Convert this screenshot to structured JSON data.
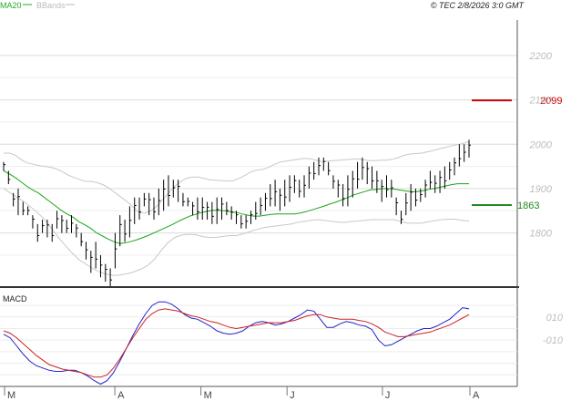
{
  "header": {
    "watermark": "© TEC 2/8/2026 3:0 GMT"
  },
  "legend": [
    {
      "label": "MA20",
      "color": "#22aa22"
    },
    {
      "label": "BBands",
      "color": "#bbbbbb"
    }
  ],
  "colors": {
    "price": "#000000",
    "ma20": "#1aa51a",
    "bbands": "#c8c8c8",
    "macd": "#2222cc",
    "signal": "#cc2222",
    "resistance": "#cc0000",
    "support": "#228822"
  },
  "macd_panel": {
    "label": "MACD"
  },
  "chart_data": [
    {
      "type": "ohlc",
      "title": "",
      "ylim": [
        1680,
        2280
      ],
      "y_ticks": [
        1800,
        1900,
        2000,
        2100,
        2200
      ],
      "x_month_labels": [
        "M",
        "A",
        "M",
        "J",
        "J",
        "A"
      ],
      "grid": true,
      "legend_placement": "top-left",
      "levels": [
        {
          "name": "resistance",
          "value": 2099,
          "label": "2099"
        },
        {
          "name": "support",
          "value": 1863,
          "label": "1863"
        }
      ],
      "price_bars": [
        [
          1940,
          1960
        ],
        [
          1910,
          1940
        ],
        [
          1860,
          1890
        ],
        [
          1840,
          1900
        ],
        [
          1840,
          1870
        ],
        [
          1840,
          1860
        ],
        [
          1810,
          1840
        ],
        [
          1780,
          1820
        ],
        [
          1800,
          1830
        ],
        [
          1790,
          1830
        ],
        [
          1780,
          1820
        ],
        [
          1810,
          1850
        ],
        [
          1800,
          1840
        ],
        [
          1800,
          1830
        ],
        [
          1800,
          1840
        ],
        [
          1790,
          1820
        ],
        [
          1770,
          1800
        ],
        [
          1740,
          1780
        ],
        [
          1710,
          1760
        ],
        [
          1720,
          1780
        ],
        [
          1700,
          1750
        ],
        [
          1690,
          1730
        ],
        [
          1680,
          1720
        ],
        [
          1720,
          1800
        ],
        [
          1770,
          1840
        ],
        [
          1780,
          1830
        ],
        [
          1790,
          1860
        ],
        [
          1820,
          1880
        ],
        [
          1830,
          1880
        ],
        [
          1860,
          1890
        ],
        [
          1840,
          1890
        ],
        [
          1830,
          1880
        ],
        [
          1840,
          1900
        ],
        [
          1850,
          1920
        ],
        [
          1860,
          1930
        ],
        [
          1880,
          1920
        ],
        [
          1870,
          1920
        ],
        [
          1860,
          1890
        ],
        [
          1860,
          1880
        ],
        [
          1840,
          1870
        ],
        [
          1830,
          1880
        ],
        [
          1830,
          1880
        ],
        [
          1830,
          1870
        ],
        [
          1820,
          1870
        ],
        [
          1820,
          1880
        ],
        [
          1830,
          1880
        ],
        [
          1840,
          1870
        ],
        [
          1830,
          1860
        ],
        [
          1820,
          1850
        ],
        [
          1810,
          1840
        ],
        [
          1810,
          1840
        ],
        [
          1820,
          1850
        ],
        [
          1830,
          1870
        ],
        [
          1840,
          1880
        ],
        [
          1850,
          1890
        ],
        [
          1860,
          1910
        ],
        [
          1860,
          1920
        ],
        [
          1850,
          1900
        ],
        [
          1860,
          1920
        ],
        [
          1870,
          1930
        ],
        [
          1890,
          1930
        ],
        [
          1880,
          1920
        ],
        [
          1880,
          1930
        ],
        [
          1900,
          1950
        ],
        [
          1920,
          1960
        ],
        [
          1930,
          1970
        ],
        [
          1940,
          1970
        ],
        [
          1930,
          1960
        ],
        [
          1900,
          1930
        ],
        [
          1880,
          1920
        ],
        [
          1860,
          1910
        ],
        [
          1860,
          1930
        ],
        [
          1880,
          1940
        ],
        [
          1900,
          1960
        ],
        [
          1920,
          1970
        ],
        [
          1910,
          1960
        ],
        [
          1900,
          1950
        ],
        [
          1890,
          1940
        ],
        [
          1870,
          1920
        ],
        [
          1880,
          1930
        ],
        [
          1880,
          1920
        ],
        [
          1840,
          1880
        ],
        [
          1820,
          1850
        ],
        [
          1840,
          1890
        ],
        [
          1850,
          1910
        ],
        [
          1860,
          1900
        ],
        [
          1870,
          1900
        ],
        [
          1880,
          1920
        ],
        [
          1900,
          1940
        ],
        [
          1890,
          1930
        ],
        [
          1890,
          1940
        ],
        [
          1900,
          1950
        ],
        [
          1920,
          1960
        ],
        [
          1930,
          1970
        ],
        [
          1950,
          2000
        ],
        [
          1960,
          2000
        ],
        [
          1970,
          2010
        ]
      ],
      "ma20": [
        1940,
        1933,
        1925,
        1915,
        1905,
        1897,
        1890,
        1880,
        1870,
        1860,
        1850,
        1842,
        1835,
        1825,
        1818,
        1810,
        1800,
        1793,
        1786,
        1780,
        1776,
        1778,
        1781,
        1785,
        1790,
        1795,
        1801,
        1807,
        1813,
        1819,
        1826,
        1832,
        1838,
        1842,
        1846,
        1849,
        1851,
        1851,
        1850,
        1848,
        1846,
        1843,
        1840,
        1838,
        1838,
        1840,
        1842,
        1843,
        1843,
        1843,
        1843,
        1845,
        1848,
        1852,
        1856,
        1860,
        1865,
        1869,
        1874,
        1879,
        1885,
        1889,
        1893,
        1897,
        1898,
        1900,
        1900,
        1899,
        1897,
        1895,
        1893,
        1893,
        1895,
        1898,
        1900,
        1903,
        1906,
        1909,
        1911,
        1911,
        1911
      ],
      "bb_upper": [
        1980,
        1980,
        1975,
        1965,
        1958,
        1955,
        1952,
        1950,
        1948,
        1944,
        1938,
        1930,
        1925,
        1920,
        1916,
        1916,
        1913,
        1908,
        1900,
        1890,
        1880,
        1870,
        1858,
        1845,
        1845,
        1850,
        1860,
        1875,
        1890,
        1905,
        1915,
        1923,
        1926,
        1926,
        1923,
        1920,
        1919,
        1918,
        1917,
        1918,
        1923,
        1930,
        1938,
        1942,
        1943,
        1948,
        1955,
        1960,
        1962,
        1964,
        1966,
        1968,
        1967,
        1964,
        1961,
        1962,
        1963,
        1964,
        1965,
        1966,
        1967,
        1965,
        1963,
        1963,
        1964,
        1964,
        1966,
        1970,
        1975,
        1978,
        1979,
        1980,
        1983,
        1986,
        1990,
        1993,
        1996,
        1999,
        2002,
        2006
      ],
      "bb_lower": [
        1900,
        1890,
        1880,
        1870,
        1858,
        1845,
        1830,
        1810,
        1790,
        1772,
        1755,
        1740,
        1730,
        1720,
        1712,
        1707,
        1704,
        1705,
        1708,
        1712,
        1718,
        1726,
        1740,
        1760,
        1778,
        1790,
        1795,
        1797,
        1796,
        1792,
        1790,
        1790,
        1792,
        1794,
        1794,
        1798,
        1803,
        1808,
        1812,
        1814,
        1816,
        1818,
        1820,
        1824,
        1826,
        1829,
        1830,
        1828,
        1826,
        1824,
        1824,
        1826,
        1827,
        1829,
        1830,
        1830,
        1830,
        1830,
        1826,
        1822,
        1822,
        1822,
        1825,
        1828,
        1830,
        1831,
        1831,
        1828,
        1827
      ],
      "month_positions": [
        0.0,
        0.237,
        0.422,
        0.607,
        0.812,
        1.0
      ]
    },
    {
      "type": "line",
      "title": "MACD",
      "ylim": [
        -50,
        35
      ],
      "y_ticks": [
        10,
        -10
      ],
      "y_tick_labels": [
        "010",
        "-010"
      ],
      "series": [
        {
          "name": "",
          "values": [
            -5,
            -8,
            -15,
            -22,
            -28,
            -32,
            -34,
            -36,
            -37,
            -37,
            -36,
            -36,
            -38,
            -41,
            -45,
            -48,
            -45,
            -38,
            -28,
            -17,
            -6,
            4,
            13,
            20,
            23,
            23,
            21,
            17,
            12,
            9,
            8,
            5,
            2,
            -2,
            -4,
            -5,
            -4,
            -2,
            2,
            5,
            6,
            5,
            3,
            4,
            6,
            9,
            12,
            16,
            15,
            8,
            1,
            1,
            4,
            6,
            5,
            3,
            2,
            -1,
            -10,
            -15,
            -14,
            -11,
            -8,
            -5,
            -2,
            0,
            0,
            2,
            5,
            8,
            13,
            18,
            17
          ]
        },
        {
          "name": "",
          "values": [
            -2,
            -4,
            -8,
            -13,
            -18,
            -23,
            -27,
            -31,
            -33,
            -35,
            -36,
            -37,
            -38,
            -40,
            -42,
            -42,
            -40,
            -34,
            -26,
            -17,
            -8,
            0,
            8,
            13,
            16,
            17,
            16,
            15,
            13,
            11,
            10,
            8,
            6,
            5,
            3,
            1,
            0,
            1,
            2,
            3,
            4,
            5,
            5,
            5,
            6,
            7,
            9,
            11,
            12,
            12,
            10,
            9,
            8,
            8,
            8,
            7,
            6,
            4,
            1,
            -3,
            -5,
            -7,
            -7,
            -6,
            -5,
            -4,
            -3,
            -1,
            1,
            3,
            6,
            9,
            12
          ]
        }
      ]
    }
  ]
}
